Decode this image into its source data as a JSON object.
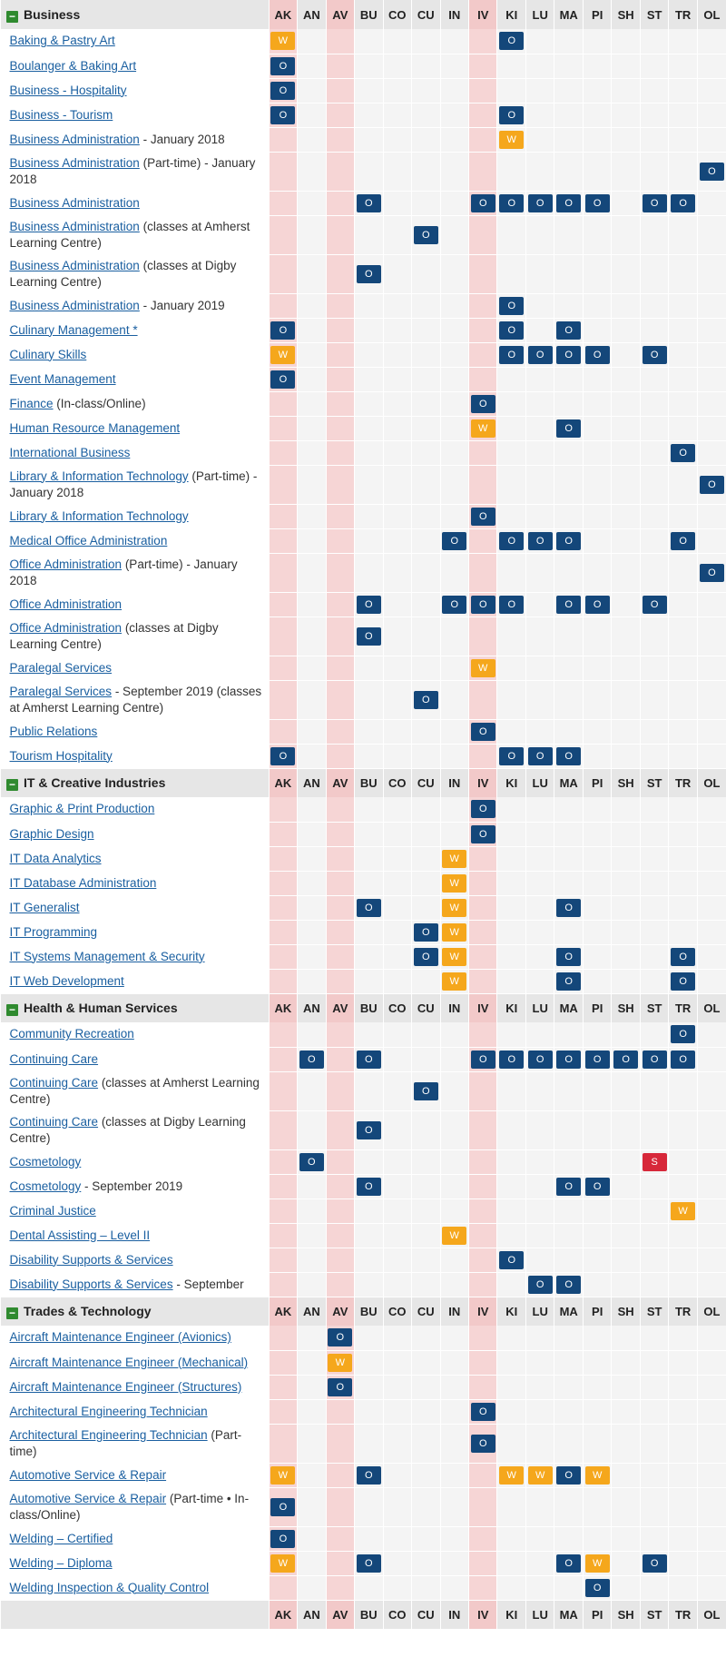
{
  "columns": [
    "AK",
    "AN",
    "AV",
    "BU",
    "CO",
    "CU",
    "IN",
    "IV",
    "KI",
    "LU",
    "MA",
    "PI",
    "SH",
    "ST",
    "TR",
    "OL"
  ],
  "highlight_columns": [
    "AK",
    "AV",
    "IV"
  ],
  "toggle_symbol": "−",
  "badge_colors": {
    "O": "#14477a",
    "W": "#f5a71c",
    "S": "#d7283a"
  },
  "sections": [
    {
      "title": "Business",
      "rows": [
        {
          "link": "Baking & Pastry Art",
          "note": "",
          "codes": {
            "AK": "W",
            "KI": "O"
          }
        },
        {
          "link": "Boulanger & Baking Art",
          "note": "",
          "codes": {
            "AK": "O"
          }
        },
        {
          "link": "Business - Hospitality",
          "note": "",
          "codes": {
            "AK": "O"
          }
        },
        {
          "link": "Business - Tourism",
          "note": "",
          "codes": {
            "AK": "O",
            "KI": "O"
          }
        },
        {
          "link": "Business Administration",
          "note": " - January 2018",
          "codes": {
            "KI": "W"
          }
        },
        {
          "link": "Business Administration",
          "note": " (Part-time) - January 2018",
          "codes": {
            "OL": "O"
          }
        },
        {
          "link": "Business Administration",
          "note": "",
          "codes": {
            "BU": "O",
            "IV": "O",
            "KI": "O",
            "LU": "O",
            "MA": "O",
            "PI": "O",
            "ST": "O",
            "TR": "O"
          }
        },
        {
          "link": "Business Administration",
          "note": " (classes at Amherst Learning Centre)",
          "codes": {
            "CU": "O"
          }
        },
        {
          "link": "Business Administration",
          "note": " (classes at Digby Learning Centre)",
          "codes": {
            "BU": "O"
          }
        },
        {
          "link": "Business Administration",
          "note": " - January 2019",
          "codes": {
            "KI": "O"
          }
        },
        {
          "link": "Culinary Management *",
          "note": "",
          "codes": {
            "AK": "O",
            "KI": "O",
            "MA": "O"
          }
        },
        {
          "link": "Culinary Skills",
          "note": "",
          "codes": {
            "AK": "W",
            "KI": "O",
            "LU": "O",
            "MA": "O",
            "PI": "O",
            "ST": "O"
          }
        },
        {
          "link": "Event Management",
          "note": "",
          "codes": {
            "AK": "O"
          }
        },
        {
          "link": "Finance",
          "note": " (In-class/Online)",
          "codes": {
            "IV": "O"
          }
        },
        {
          "link": "Human Resource Management",
          "note": "",
          "codes": {
            "IV": "W",
            "MA": "O"
          }
        },
        {
          "link": "International Business",
          "note": "",
          "codes": {
            "TR": "O"
          }
        },
        {
          "link": "Library & Information Technology",
          "note": " (Part-time) - January 2018",
          "codes": {
            "OL": "O"
          }
        },
        {
          "link": "Library & Information Technology",
          "note": "",
          "codes": {
            "IV": "O"
          }
        },
        {
          "link": "Medical Office Administration",
          "note": "",
          "codes": {
            "IN": "O",
            "KI": "O",
            "LU": "O",
            "MA": "O",
            "TR": "O"
          }
        },
        {
          "link": "Office Administration",
          "note": " (Part-time) - January 2018",
          "codes": {
            "OL": "O"
          }
        },
        {
          "link": "Office Administration",
          "note": "",
          "codes": {
            "BU": "O",
            "IN": "O",
            "IV": "O",
            "KI": "O",
            "MA": "O",
            "PI": "O",
            "ST": "O"
          }
        },
        {
          "link": "Office Administration",
          "note": " (classes at Digby Learning Centre)",
          "codes": {
            "BU": "O"
          }
        },
        {
          "link": "Paralegal Services",
          "note": "",
          "codes": {
            "IV": "W"
          }
        },
        {
          "link": "Paralegal Services",
          "note": " - September 2019 (classes at Amherst Learning Centre)",
          "codes": {
            "CU": "O"
          }
        },
        {
          "link": "Public Relations",
          "note": "",
          "codes": {
            "IV": "O"
          }
        },
        {
          "link": "Tourism Hospitality",
          "note": "",
          "codes": {
            "AK": "O",
            "KI": "O",
            "LU": "O",
            "MA": "O"
          }
        }
      ]
    },
    {
      "title": "IT & Creative Industries",
      "rows": [
        {
          "link": "Graphic & Print Production",
          "note": "",
          "codes": {
            "IV": "O"
          }
        },
        {
          "link": "Graphic Design",
          "note": "",
          "codes": {
            "IV": "O"
          }
        },
        {
          "link": "IT Data Analytics",
          "note": "",
          "codes": {
            "IN": "W"
          }
        },
        {
          "link": "IT Database Administration",
          "note": "",
          "codes": {
            "IN": "W"
          }
        },
        {
          "link": "IT Generalist",
          "note": "",
          "codes": {
            "BU": "O",
            "IN": "W",
            "MA": "O"
          }
        },
        {
          "link": "IT Programming",
          "note": "",
          "codes": {
            "CU": "O",
            "IN": "W"
          }
        },
        {
          "link": "IT Systems Management & Security",
          "note": "",
          "codes": {
            "CU": "O",
            "IN": "W",
            "MA": "O",
            "TR": "O"
          }
        },
        {
          "link": "IT Web Development",
          "note": "",
          "codes": {
            "IN": "W",
            "MA": "O",
            "TR": "O"
          }
        }
      ]
    },
    {
      "title": "Health & Human Services",
      "rows": [
        {
          "link": "Community Recreation",
          "note": "",
          "codes": {
            "TR": "O"
          }
        },
        {
          "link": "Continuing Care",
          "note": "",
          "codes": {
            "AN": "O",
            "BU": "O",
            "IV": "O",
            "KI": "O",
            "LU": "O",
            "MA": "O",
            "PI": "O",
            "SH": "O",
            "ST": "O",
            "TR": "O"
          }
        },
        {
          "link": "Continuing Care",
          "note": " (classes at Amherst Learning Centre)",
          "codes": {
            "CU": "O"
          }
        },
        {
          "link": "Continuing Care",
          "note": " (classes at Digby Learning Centre)",
          "codes": {
            "BU": "O"
          }
        },
        {
          "link": "Cosmetology",
          "note": "",
          "codes": {
            "AN": "O",
            "ST": "S"
          }
        },
        {
          "link": "Cosmetology",
          "note": " - September 2019",
          "codes": {
            "BU": "O",
            "MA": "O",
            "PI": "O"
          }
        },
        {
          "link": "Criminal Justice",
          "note": "",
          "codes": {
            "TR": "W"
          }
        },
        {
          "link": "Dental Assisting – Level II",
          "note": "",
          "codes": {
            "IN": "W"
          }
        },
        {
          "link": "Disability Supports & Services",
          "note": "",
          "codes": {
            "KI": "O"
          }
        },
        {
          "link": "Disability Supports & Services",
          "note": " - September",
          "codes": {
            "LU": "O",
            "MA": "O"
          }
        }
      ]
    },
    {
      "title": "Trades & Technology",
      "rows": [
        {
          "link": "Aircraft Maintenance Engineer (Avionics)",
          "note": "",
          "codes": {
            "AV": "O"
          }
        },
        {
          "link": "Aircraft Maintenance Engineer (Mechanical)",
          "note": "",
          "codes": {
            "AV": "W"
          }
        },
        {
          "link": "Aircraft Maintenance Engineer (Structures)",
          "note": "",
          "codes": {
            "AV": "O"
          }
        },
        {
          "link": "Architectural Engineering Technician",
          "note": "",
          "codes": {
            "IV": "O"
          }
        },
        {
          "link": "Architectural Engineering Technician",
          "note": " (Part-time)",
          "codes": {
            "IV": "O"
          }
        },
        {
          "link": "Automotive Service & Repair",
          "note": "",
          "codes": {
            "AK": "W",
            "BU": "O",
            "KI": "W",
            "LU": "W",
            "MA": "O",
            "PI": "W"
          }
        },
        {
          "link": "Automotive Service & Repair",
          "note": " (Part-time • In-class/Online)",
          "codes": {
            "AK": "O"
          }
        },
        {
          "link": "Welding – Certified",
          "note": "",
          "codes": {
            "AK": "O"
          }
        },
        {
          "link": "Welding – Diploma",
          "note": "",
          "codes": {
            "AK": "W",
            "BU": "O",
            "MA": "O",
            "PI": "W",
            "ST": "O"
          }
        },
        {
          "link": "Welding Inspection & Quality Control",
          "note": "",
          "codes": {
            "PI": "O"
          }
        }
      ]
    }
  ]
}
